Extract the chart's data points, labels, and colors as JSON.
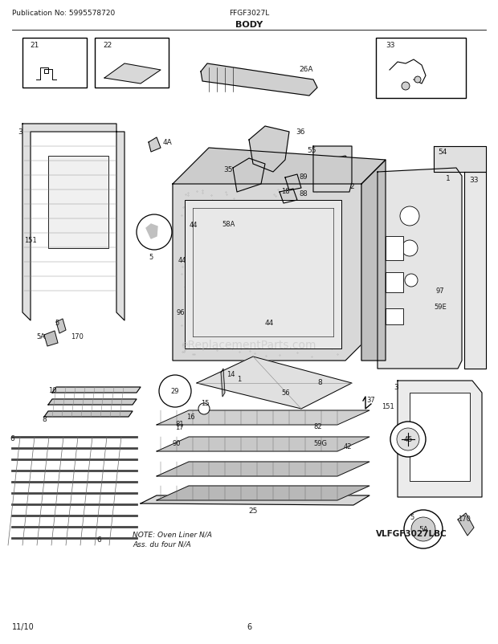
{
  "title": "BODY",
  "pub_no": "Publication No: 5995578720",
  "model": "FFGF3027L",
  "date": "11/10",
  "page": "6",
  "model_code": "VLFGF3027LBC",
  "note_line1": "NOTE: Oven Liner N/A",
  "note_line2": "Ass. du four N/A",
  "bg_color": "#ffffff",
  "line_color": "#000000",
  "text_color": "#1a1a1a",
  "watermark": "eReplacementParts.com",
  "watermark_color": "#bbbbbb",
  "figsize": [
    6.2,
    8.03
  ],
  "dpi": 100
}
